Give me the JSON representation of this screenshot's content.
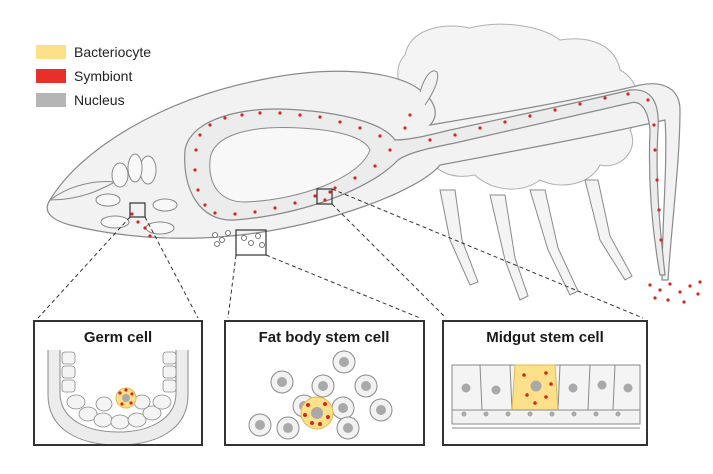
{
  "legend": {
    "items": [
      {
        "label": "Bacteriocyte",
        "color": "#fde08a"
      },
      {
        "label": "Symbiont",
        "color": "#e8302a"
      },
      {
        "label": "Nucleus",
        "color": "#b5b5b5"
      }
    ]
  },
  "panels": {
    "germ": {
      "title": "Germ cell"
    },
    "fat_body": {
      "title": "Fat body stem cell"
    },
    "midgut": {
      "title": "Midgut stem cell"
    }
  },
  "colors": {
    "outline": "#8a8a8a",
    "body_fill": "#f2f2f2",
    "symbiont": "#d7261e",
    "nucleus": "#a9a9a9",
    "bacteriocyte": "#fde08a",
    "panel_border": "#333333"
  }
}
